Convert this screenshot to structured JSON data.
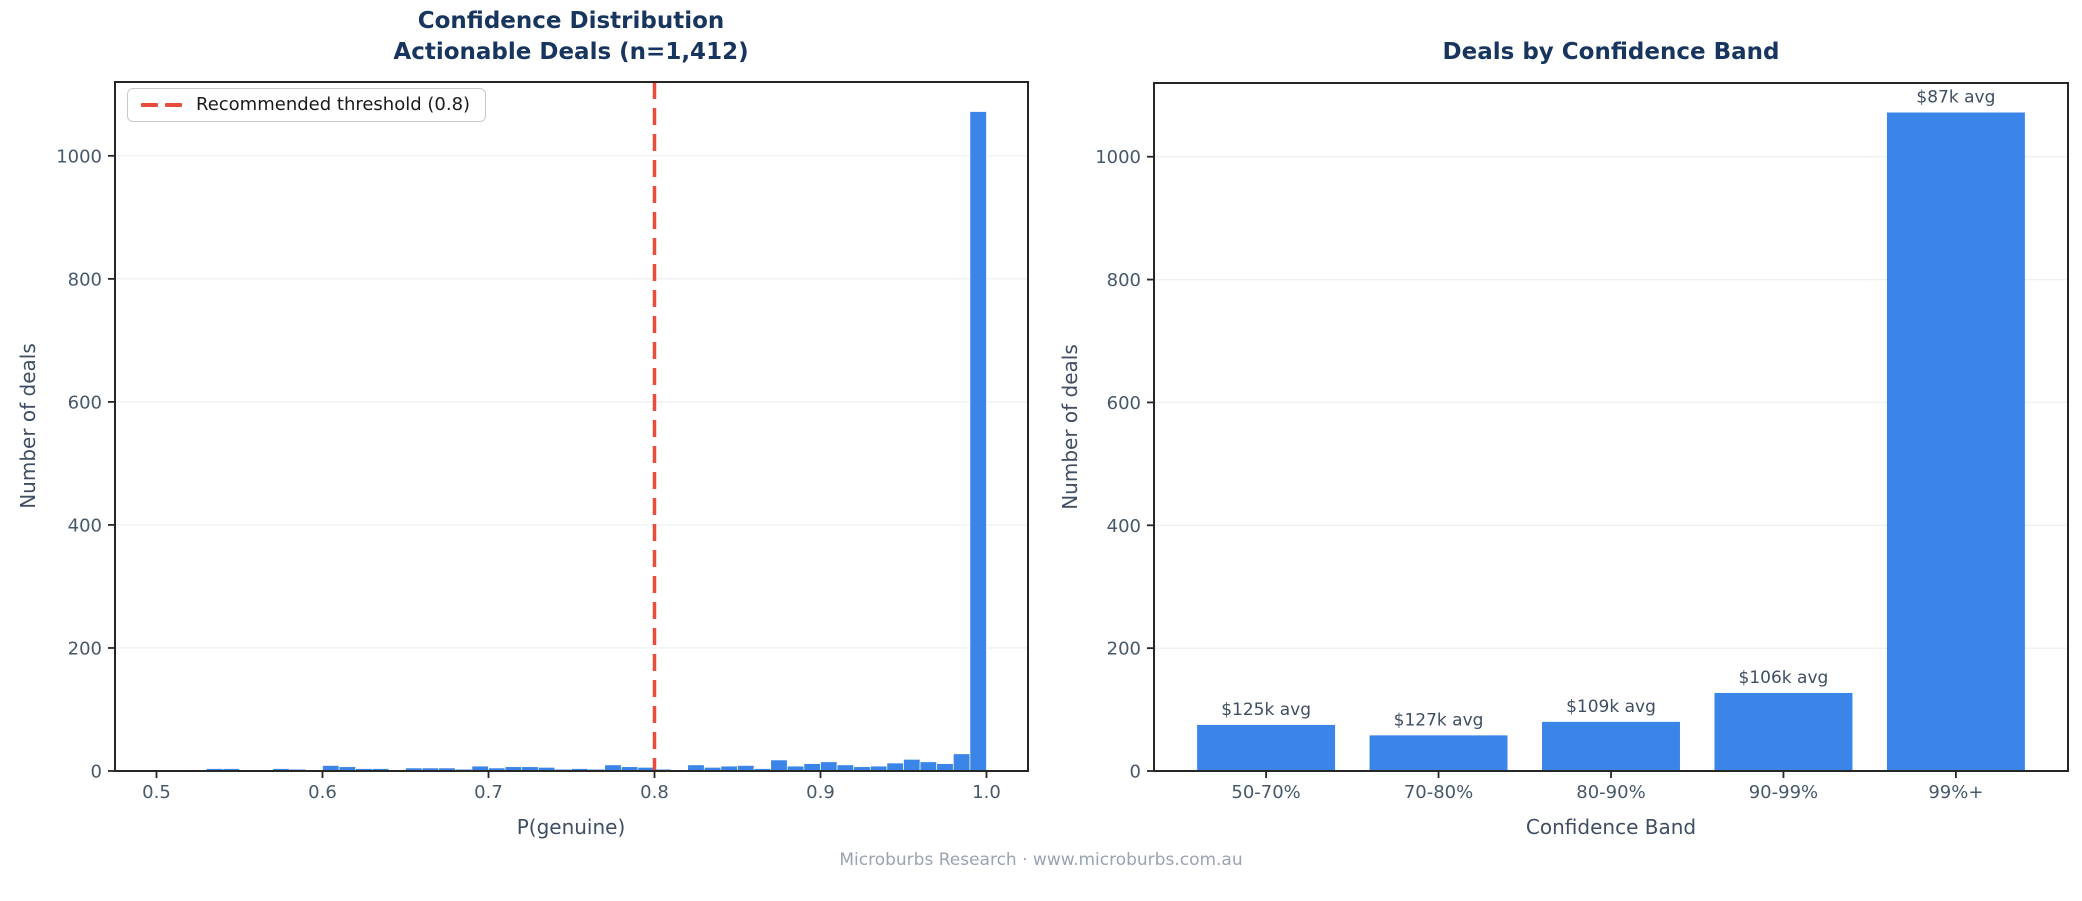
{
  "footer": {
    "text": "Microburbs Research · www.microburbs.com.au"
  },
  "colors": {
    "bar_blue": "#3c85e8",
    "threshold_red": "#e84c3d",
    "title_navy": "#17355e",
    "tick_slate": "#47586b",
    "label_slate": "#3f4e63",
    "annotation_slate": "#3f4e63",
    "footer_gray": "#99a3b1",
    "spine": "#262626",
    "grid": "#eef0f3"
  },
  "chart_data": [
    {
      "type": "bar",
      "subtype": "histogram",
      "title_lines": {
        "line1": "Confidence Distribution",
        "line2": "Actionable Deals (n=1,412)"
      },
      "xlabel": "P(genuine)",
      "ylabel": "Number of deals",
      "xlim": [
        0.475,
        1.025
      ],
      "ylim": [
        0,
        1120
      ],
      "grid": true,
      "xticks": [
        0.5,
        0.6,
        0.7,
        0.8,
        0.9,
        1.0
      ],
      "xtick_labels": [
        "0.5",
        "0.6",
        "0.7",
        "0.8",
        "0.9",
        "1.0"
      ],
      "yticks": [
        0,
        200,
        400,
        600,
        800,
        1000
      ],
      "bin_start": 0.5,
      "bin_width": 0.01,
      "bins": [
        2,
        1,
        1,
        4,
        4,
        2,
        1,
        4,
        3,
        1,
        9,
        7,
        4,
        4,
        2,
        5,
        5,
        5,
        3,
        8,
        5,
        7,
        7,
        6,
        3,
        4,
        3,
        10,
        7,
        6,
        3,
        2,
        10,
        6,
        8,
        9,
        4,
        18,
        8,
        12,
        15,
        10,
        7,
        8,
        13,
        19,
        15,
        12,
        28,
        1072
      ],
      "threshold": {
        "value": 0.8,
        "label": "Recommended threshold (0.8)"
      },
      "legend_position": "upper-left"
    },
    {
      "type": "bar",
      "title": "Deals by Confidence Band",
      "xlabel": "Confidence Band",
      "ylabel": "Number of deals",
      "ylim": [
        0,
        1120
      ],
      "grid": true,
      "yticks": [
        0,
        200,
        400,
        600,
        800,
        1000
      ],
      "categories": [
        "50-70%",
        "70-80%",
        "80-90%",
        "90-99%",
        "99%+"
      ],
      "values": [
        75,
        58,
        80,
        127,
        1072
      ],
      "annotations": [
        "$125k avg",
        "$127k avg",
        "$109k avg",
        "$106k avg",
        "$87k avg"
      ]
    }
  ]
}
